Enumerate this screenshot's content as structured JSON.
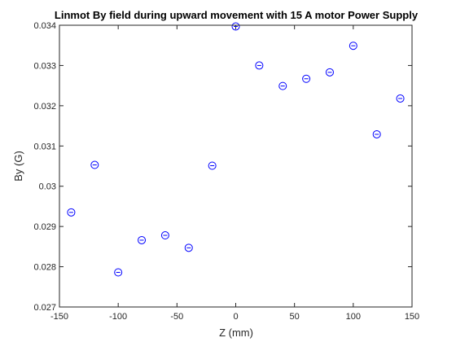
{
  "chart_data": {
    "type": "scatter",
    "title": "Linmot By field during upward movement with 15 A motor Power Supply",
    "xlabel": "Z (mm)",
    "ylabel": "By (G)",
    "xlim": [
      -150,
      150
    ],
    "ylim": [
      0.027,
      0.034
    ],
    "xticks": [
      -150,
      -100,
      -50,
      0,
      50,
      100,
      150
    ],
    "yticks": [
      0.027,
      0.028,
      0.029,
      0.03,
      0.031,
      0.032,
      0.033,
      0.034
    ],
    "xtick_labels": [
      "-150",
      "-100",
      "-50",
      "0",
      "50",
      "100",
      "150"
    ],
    "ytick_labels": [
      "0.027",
      "0.028",
      "0.029",
      "0.03",
      "0.031",
      "0.032",
      "0.033",
      "0.034"
    ],
    "grid": false,
    "marker": "circle-with-errorbar",
    "series": [
      {
        "color": "#0000ff",
        "x": [
          -140,
          -120,
          -100,
          -80,
          -60,
          -40,
          -20,
          0,
          20,
          40,
          60,
          80,
          100,
          120,
          140
        ],
        "y": [
          0.02935,
          0.03053,
          0.02786,
          0.02866,
          0.02878,
          0.02847,
          0.03051,
          0.03397,
          0.033,
          0.03249,
          0.03267,
          0.03283,
          0.03349,
          0.03129,
          0.03218
        ]
      }
    ]
  }
}
